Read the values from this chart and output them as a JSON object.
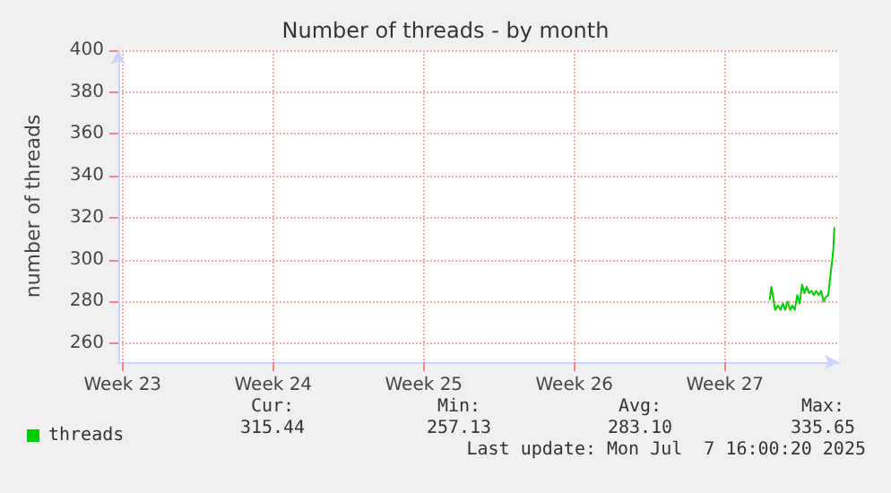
{
  "chart_data": {
    "type": "line",
    "title": "Number of threads - by month",
    "ylabel": "number of threads",
    "xlim": [
      "2025-06-04T09:12",
      "2025-07-07T21:12"
    ],
    "xticks": [
      {
        "value": "2025-06-04T14:00",
        "label": "Week 23"
      },
      {
        "value": "2025-06-11T14:00",
        "label": "Week 24"
      },
      {
        "value": "2025-06-18T14:00",
        "label": "Week 25"
      },
      {
        "value": "2025-06-25T14:00",
        "label": "Week 26"
      },
      {
        "value": "2025-07-02T14:00",
        "label": "Week 27"
      }
    ],
    "ylim": [
      251,
      400
    ],
    "yticks": [
      260,
      280,
      300,
      320,
      340,
      360,
      380,
      400
    ],
    "grid": true,
    "legend": "bottom left",
    "marker": "none",
    "line_style": "solid",
    "series": [
      {
        "name": "threads",
        "color": "#00cc00",
        "x": [
          "2025-07-04T15:55",
          "2025-07-04T17:50",
          "2025-07-04T21:55",
          "2025-07-05T01:17",
          "2025-07-05T03:55",
          "2025-07-05T06:34",
          "2025-07-05T09:12",
          "2025-07-05T11:50",
          "2025-07-05T14:43",
          "2025-07-05T17:07",
          "2025-07-05T19:46",
          "2025-07-05T22:38",
          "2025-07-06T01:17",
          "2025-07-06T03:55",
          "2025-07-06T06:34",
          "2025-07-06T09:12",
          "2025-07-06T11:50",
          "2025-07-06T14:43",
          "2025-07-06T17:07",
          "2025-07-06T19:46",
          "2025-07-06T22:38",
          "2025-07-07T01:17",
          "2025-07-07T03:55",
          "2025-07-07T06:34",
          "2025-07-07T09:12",
          "2025-07-07T11:50",
          "2025-07-07T14:43",
          "2025-07-07T16:00"
        ],
        "values": [
          281,
          287,
          276,
          278,
          276,
          279,
          276,
          280,
          276,
          278,
          276,
          283,
          279,
          288,
          284,
          287,
          284,
          285,
          283,
          285,
          283,
          285,
          280,
          282,
          283,
          293,
          304,
          315
        ]
      }
    ],
    "annotations": [
      "Cur:",
      "Min:",
      "Avg:",
      "Max:",
      "315.44",
      "257.13",
      "283.10",
      "335.65",
      "Last update: Mon Jul  7 16:00:20 2025"
    ]
  }
}
